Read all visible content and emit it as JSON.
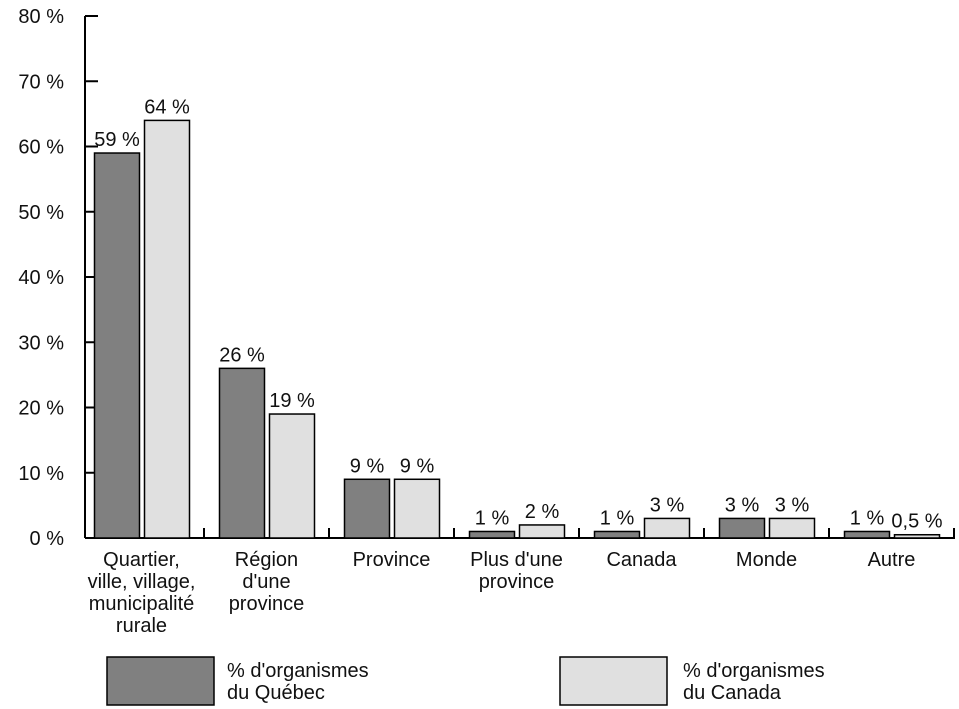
{
  "chart_data": {
    "type": "bar",
    "categories": [
      "Quartier,\nville, village,\nmunicipalité\nrurale",
      "Région\nd'une\nprovince",
      "Province",
      "Plus d'une\nprovince",
      "Canada",
      "Monde",
      "Autre"
    ],
    "series": [
      {
        "name": "% d'organismes\ndu Québec",
        "color": "#808080",
        "values": [
          59,
          26,
          9,
          1,
          1,
          3,
          1
        ],
        "value_labels": [
          "59 %",
          "26 %",
          "9 %",
          "1 %",
          "1 %",
          "3 %",
          "1 %"
        ]
      },
      {
        "name": "% d'organismes\ndu Canada",
        "color": "#e0e0e0",
        "values": [
          64,
          19,
          9,
          2,
          3,
          3,
          0.5
        ],
        "value_labels": [
          "64 %",
          "19 %",
          "9 %",
          "2 %",
          "3 %",
          "3 %",
          "0,5 %"
        ]
      }
    ],
    "ylim": [
      0,
      80
    ],
    "yticks": [
      {
        "value": 0,
        "label": "0 %"
      },
      {
        "value": 10,
        "label": "10 %"
      },
      {
        "value": 20,
        "label": "20 %"
      },
      {
        "value": 30,
        "label": "30 %"
      },
      {
        "value": 40,
        "label": "40 %"
      },
      {
        "value": 50,
        "label": "50 %"
      },
      {
        "value": 60,
        "label": "60 %"
      },
      {
        "value": 70,
        "label": "70 %"
      },
      {
        "value": 80,
        "label": "80 %"
      }
    ]
  }
}
